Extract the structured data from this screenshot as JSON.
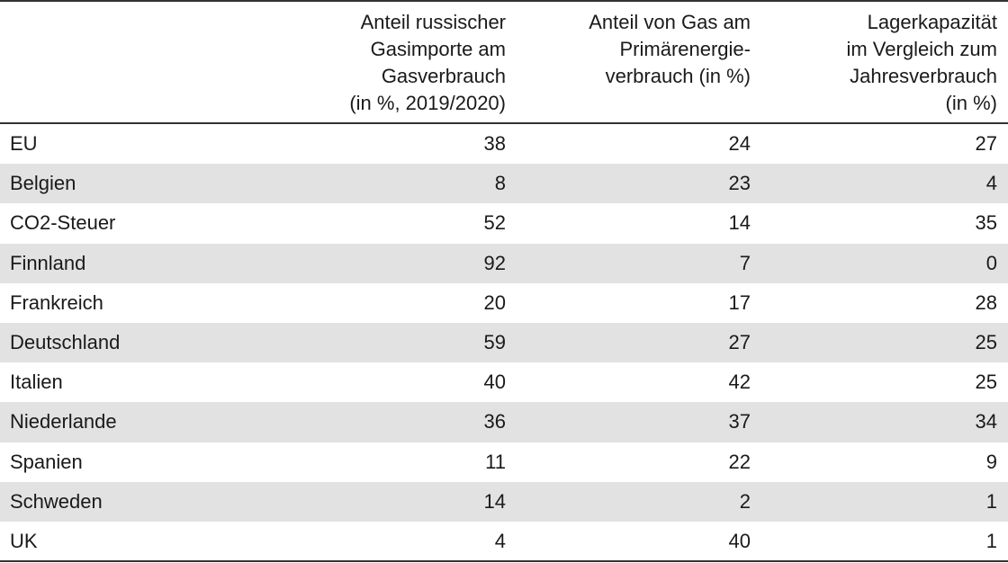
{
  "chart_data": {
    "type": "table",
    "columns": [
      "",
      "Anteil russischer\nGasimporte am\nGasverbrauch\n(in %, 2019/2020)",
      "Anteil von Gas am\nPrimärenergie-\nverbrauch (in %)",
      "Lagerkapazität\nim Vergleich zum\nJahresverbrauch\n(in %)"
    ],
    "rows": [
      [
        "EU",
        "38",
        "24",
        "27"
      ],
      [
        "Belgien",
        "8",
        "23",
        "4"
      ],
      [
        "CO2-Steuer",
        "52",
        "14",
        "35"
      ],
      [
        "Finnland",
        "92",
        "7",
        "0"
      ],
      [
        "Frankreich",
        "20",
        "17",
        "28"
      ],
      [
        "Deutschland",
        "59",
        "27",
        "25"
      ],
      [
        "Italien",
        "40",
        "42",
        "25"
      ],
      [
        "Niederlande",
        "36",
        "37",
        "34"
      ],
      [
        "Spanien",
        "11",
        "22",
        "9"
      ],
      [
        "Schweden",
        "14",
        "2",
        "1"
      ],
      [
        "UK",
        "4",
        "40",
        "1"
      ]
    ]
  }
}
